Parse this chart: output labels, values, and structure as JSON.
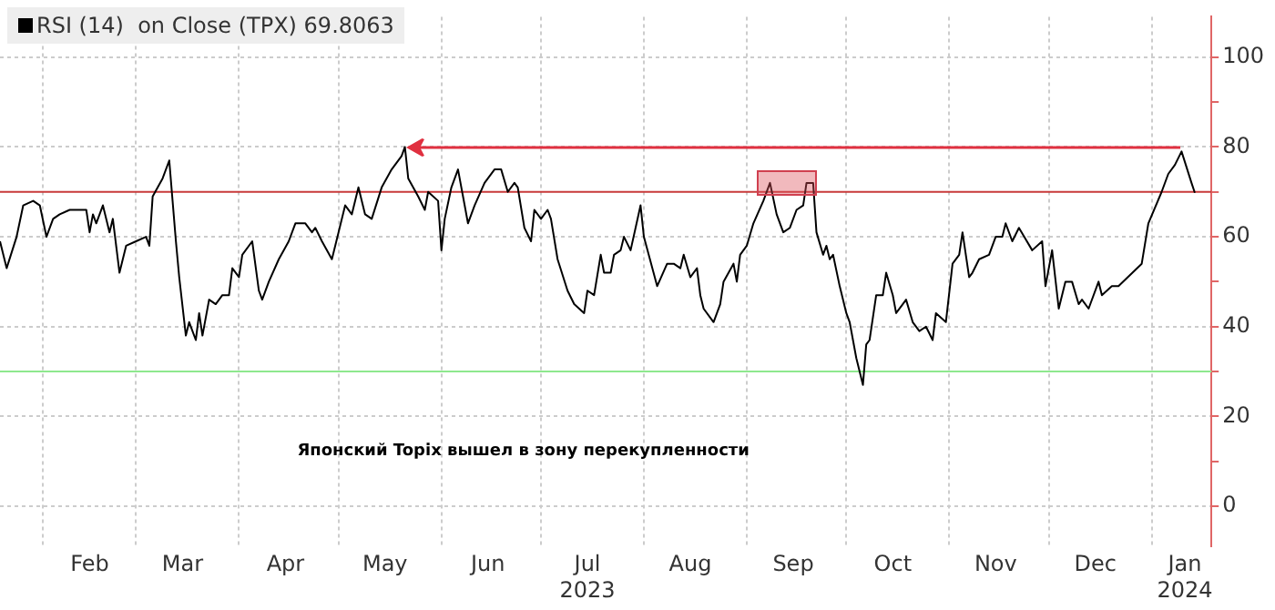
{
  "chart_data": {
    "type": "line",
    "annotations": [
      "Японский Topix вышел в зону перекупленности"
    ],
    "legend": "top left",
    "grid": true,
    "marker": "none",
    "line_style": "solid",
    "x": [
      "2023-01-19",
      "2023-01-21",
      "2023-01-24",
      "2023-01-26",
      "2023-01-29",
      "2023-01-31",
      "2023-02-02",
      "2023-02-04",
      "2023-02-06",
      "2023-02-09",
      "2023-02-10",
      "2023-02-14",
      "2023-02-15",
      "2023-02-16",
      "2023-02-17",
      "2023-02-19",
      "2023-02-21",
      "2023-02-22",
      "2023-02-24",
      "2023-02-26",
      "2023-03-01",
      "2023-03-04",
      "2023-03-05",
      "2023-03-06",
      "2023-03-09",
      "2023-03-11",
      "2023-03-13",
      "2023-03-14",
      "2023-03-16",
      "2023-03-17",
      "2023-03-19",
      "2023-03-20",
      "2023-03-21",
      "2023-03-23",
      "2023-03-25",
      "2023-03-27",
      "2023-03-29",
      "2023-03-30",
      "2023-04-01",
      "2023-04-02",
      "2023-04-05",
      "2023-04-07",
      "2023-04-08",
      "2023-04-10",
      "2023-04-13",
      "2023-04-16",
      "2023-04-18",
      "2023-04-21",
      "2023-04-23",
      "2023-04-24",
      "2023-04-26",
      "2023-04-29",
      "2023-05-01",
      "2023-05-03",
      "2023-05-05",
      "2023-05-07",
      "2023-05-09",
      "2023-05-11",
      "2023-05-14",
      "2023-05-17",
      "2023-05-20",
      "2023-05-21",
      "2023-05-22",
      "2023-05-25",
      "2023-05-27",
      "2023-05-28",
      "2023-05-31",
      "2023-06-01",
      "2023-06-02",
      "2023-06-04",
      "2023-06-06",
      "2023-06-09",
      "2023-06-11",
      "2023-06-14",
      "2023-06-17",
      "2023-06-19",
      "2023-06-21",
      "2023-06-23",
      "2023-06-24",
      "2023-06-26",
      "2023-06-28",
      "2023-06-29",
      "2023-07-01",
      "2023-07-03",
      "2023-07-04",
      "2023-07-06",
      "2023-07-09",
      "2023-07-11",
      "2023-07-14",
      "2023-07-15",
      "2023-07-17",
      "2023-07-19",
      "2023-07-20",
      "2023-07-22",
      "2023-07-23",
      "2023-07-25",
      "2023-07-26",
      "2023-07-28",
      "2023-07-31",
      "2023-08-01",
      "2023-08-05",
      "2023-08-08",
      "2023-08-10",
      "2023-08-12",
      "2023-08-13",
      "2023-08-15",
      "2023-08-17",
      "2023-08-18",
      "2023-08-19",
      "2023-08-22",
      "2023-08-24",
      "2023-08-25",
      "2023-08-28",
      "2023-08-29",
      "2023-08-30",
      "2023-09-01",
      "2023-09-03",
      "2023-09-06",
      "2023-09-08",
      "2023-09-10",
      "2023-09-12",
      "2023-09-14",
      "2023-09-16",
      "2023-09-18",
      "2023-09-19",
      "2023-09-21",
      "2023-09-22",
      "2023-09-24",
      "2023-09-25",
      "2023-09-26",
      "2023-09-27",
      "2023-09-29",
      "2023-10-01",
      "2023-10-02",
      "2023-10-04",
      "2023-10-06",
      "2023-10-07",
      "2023-10-08",
      "2023-10-10",
      "2023-10-12",
      "2023-10-13",
      "2023-10-15",
      "2023-10-16",
      "2023-10-18",
      "2023-10-19",
      "2023-10-21",
      "2023-10-23",
      "2023-10-25",
      "2023-10-27",
      "2023-10-28",
      "2023-10-31",
      "2023-11-02",
      "2023-11-04",
      "2023-11-05",
      "2023-11-07",
      "2023-11-08",
      "2023-11-10",
      "2023-11-13",
      "2023-11-15",
      "2023-11-17",
      "2023-11-18",
      "2023-11-20",
      "2023-11-22",
      "2023-11-26",
      "2023-11-29",
      "2023-11-30",
      "2023-12-02",
      "2023-12-04",
      "2023-12-06",
      "2023-12-08",
      "2023-12-10",
      "2023-12-11",
      "2023-12-13",
      "2023-12-16",
      "2023-12-17",
      "2023-12-20",
      "2023-12-22",
      "2023-12-29",
      "2023-12-31",
      "2024-01-04",
      "2024-01-06",
      "2024-01-08",
      "2024-01-10",
      "2024-01-13",
      "2024-01-14"
    ],
    "series": [
      {
        "name": "RSI (14)  on Close (TPX) 69.8063",
        "color": "#000000",
        "values": [
          59,
          53,
          60,
          67,
          68,
          67,
          60,
          64,
          65,
          66,
          66,
          66,
          61,
          65,
          63,
          67,
          61,
          64,
          52,
          58,
          59,
          60,
          58,
          69,
          73,
          77,
          59,
          51,
          38,
          41,
          37,
          43,
          38,
          46,
          45,
          47,
          47,
          53,
          51,
          56,
          59,
          48,
          46,
          50,
          55,
          59,
          63,
          63,
          61,
          62,
          59,
          55,
          61,
          67,
          65,
          71,
          65,
          64,
          71,
          75,
          78,
          80,
          73,
          69,
          66,
          70,
          68,
          57,
          64,
          71,
          75,
          63,
          67,
          72,
          75,
          75,
          70,
          72,
          71,
          62,
          59,
          66,
          64,
          66,
          64,
          55,
          48,
          45,
          43,
          48,
          47,
          56,
          52,
          52,
          56,
          57,
          60,
          57,
          67,
          60,
          49,
          54,
          54,
          53,
          56,
          51,
          53,
          47,
          44,
          41,
          45,
          50,
          54,
          50,
          56,
          58,
          63,
          68,
          72,
          65,
          61,
          62,
          66,
          67,
          72,
          72,
          61,
          56,
          58,
          55,
          56,
          49,
          43,
          41,
          33,
          27,
          36,
          37,
          47,
          47,
          52,
          47,
          43,
          45,
          46,
          41,
          39,
          40,
          37,
          43,
          41,
          54,
          56,
          61,
          51,
          52,
          55,
          56,
          60,
          60,
          63,
          59,
          62,
          57,
          59,
          49,
          57,
          44,
          50,
          50,
          45,
          46,
          44,
          50,
          47,
          49,
          49,
          54,
          63,
          70,
          74,
          76,
          79,
          72,
          69.8063
        ]
      }
    ],
    "xlim": [
      "2023-01-19",
      "2024-01-19"
    ],
    "xticks": [
      {
        "value": "2023-02-01",
        "label": null
      },
      {
        "value": "2023-02-15",
        "label": "Feb"
      },
      {
        "value": "2023-03-01",
        "label": null
      },
      {
        "value": "2023-03-15",
        "label": "Mar"
      },
      {
        "value": "2023-04-01",
        "label": null
      },
      {
        "value": "2023-04-15",
        "label": "Apr"
      },
      {
        "value": "2023-05-01",
        "label": null
      },
      {
        "value": "2023-05-15",
        "label": "May"
      },
      {
        "value": "2023-06-01",
        "label": null
      },
      {
        "value": "2023-06-15",
        "label": "Jun"
      },
      {
        "value": "2023-07-01",
        "label": null
      },
      {
        "value": "2023-07-15",
        "label": "Jul\n2023"
      },
      {
        "value": "2023-08-01",
        "label": null
      },
      {
        "value": "2023-08-15",
        "label": "Aug"
      },
      {
        "value": "2023-09-01",
        "label": null
      },
      {
        "value": "2023-09-15",
        "label": "Sep"
      },
      {
        "value": "2023-10-01",
        "label": null
      },
      {
        "value": "2023-10-15",
        "label": "Oct"
      },
      {
        "value": "2023-11-01",
        "label": null
      },
      {
        "value": "2023-11-15",
        "label": "Nov"
      },
      {
        "value": "2023-12-01",
        "label": null
      },
      {
        "value": "2023-12-15",
        "label": "Dec"
      },
      {
        "value": "2024-01-01",
        "label": null
      },
      {
        "value": "2024-01-11",
        "label": "Jan\n2024"
      }
    ],
    "ylim": [
      -9,
      109
    ],
    "yticks": [
      0,
      {
        "value": 10,
        "label": null
      },
      20,
      {
        "value": 30,
        "label": null
      },
      40,
      {
        "value": 50,
        "label": null
      },
      60,
      {
        "value": 70,
        "label": null
      },
      80,
      {
        "value": 90,
        "label": null
      },
      100
    ],
    "ref_lines": [
      {
        "axis": "y",
        "value": 70,
        "color": "#c83a3a"
      },
      {
        "axis": "y",
        "value": 30,
        "color": "#8ee88e"
      }
    ]
  }
}
